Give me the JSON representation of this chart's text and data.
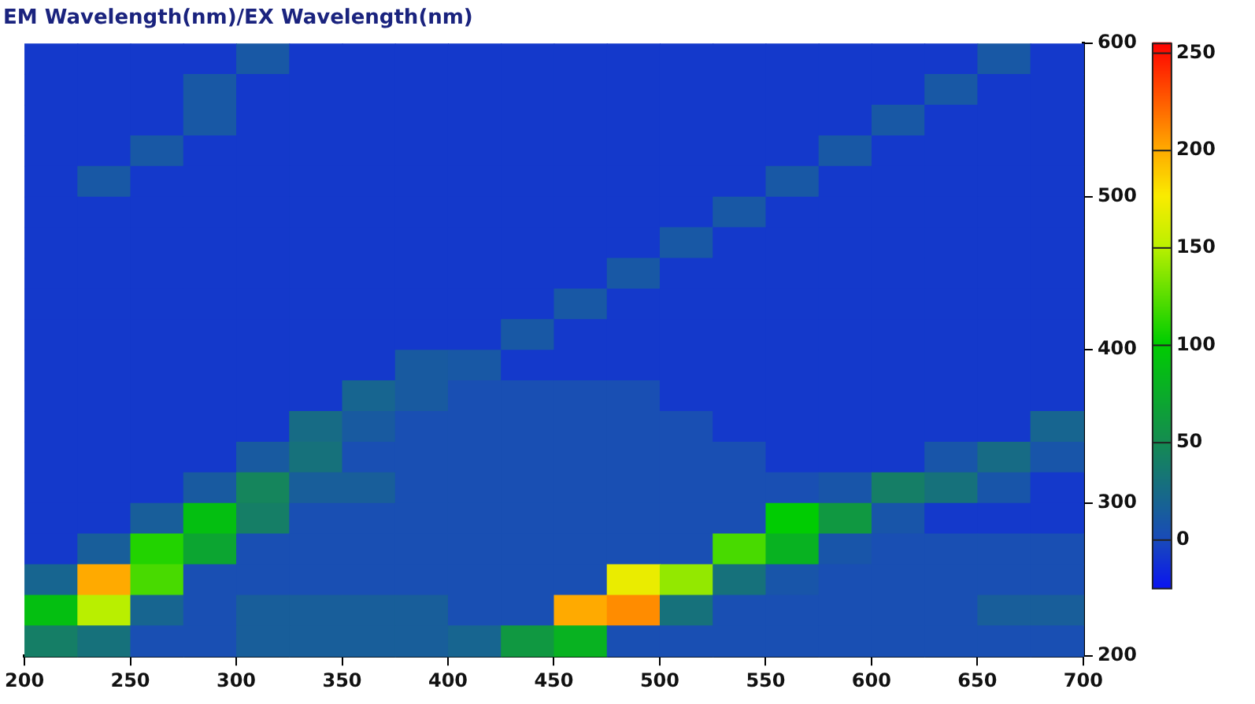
{
  "chart_data": {
    "type": "heatmap",
    "title": "EM Wavelength(nm)/EX Wavelength(nm)",
    "x": [
      212.5,
      237.5,
      262.5,
      287.5,
      312.5,
      337.5,
      362.5,
      387.5,
      412.5,
      437.5,
      462.5,
      487.5,
      512.5,
      537.5,
      562.5,
      587.5,
      612.5,
      637.5,
      662.5,
      687.5
    ],
    "y": [
      590,
      570,
      550,
      530,
      510,
      490,
      470,
      450,
      430,
      410,
      390,
      370,
      350,
      330,
      310,
      290,
      270,
      250,
      230,
      210
    ],
    "cells": [
      [
        -8,
        -8,
        -8,
        -8,
        10,
        -8,
        -8,
        -8,
        -8,
        -8,
        -8,
        -8,
        -8,
        -8,
        -8,
        -8,
        -8,
        -8,
        10,
        -8
      ],
      [
        -8,
        -8,
        -8,
        10,
        -8,
        -8,
        -8,
        -8,
        -8,
        -8,
        -8,
        -8,
        -8,
        -8,
        -8,
        -8,
        -8,
        10,
        -8,
        -8
      ],
      [
        -8,
        -8,
        -8,
        10,
        -8,
        -8,
        -8,
        -8,
        -8,
        -8,
        -8,
        -8,
        -8,
        -8,
        -8,
        -8,
        10,
        -8,
        -8,
        -8
      ],
      [
        -8,
        -8,
        10,
        -8,
        -8,
        -8,
        -8,
        -8,
        -8,
        -8,
        -8,
        -8,
        -8,
        -8,
        -8,
        10,
        -8,
        -8,
        -8,
        -8
      ],
      [
        -8,
        10,
        -8,
        -8,
        -8,
        -8,
        -8,
        -8,
        -8,
        -8,
        -8,
        -8,
        -8,
        -8,
        10,
        -8,
        -8,
        -8,
        -8,
        -8
      ],
      [
        -8,
        -8,
        -8,
        -8,
        -8,
        -8,
        -8,
        -8,
        -8,
        -8,
        -8,
        -8,
        -8,
        10,
        -8,
        -8,
        -8,
        -8,
        -8,
        -8
      ],
      [
        -8,
        -8,
        -8,
        -8,
        -8,
        -8,
        -8,
        -8,
        -8,
        -8,
        -8,
        -8,
        10,
        -8,
        -8,
        -8,
        -8,
        -8,
        -8,
        -8
      ],
      [
        -8,
        -8,
        -8,
        -8,
        -8,
        -8,
        -8,
        -8,
        -8,
        -8,
        -8,
        10,
        -8,
        -8,
        -8,
        -8,
        -8,
        -8,
        -8,
        -8
      ],
      [
        -8,
        -8,
        -8,
        -8,
        -8,
        -8,
        -8,
        -8,
        -8,
        -8,
        10,
        -8,
        -8,
        -8,
        -8,
        -8,
        -8,
        -8,
        -8,
        -8
      ],
      [
        -8,
        -8,
        -8,
        -8,
        -8,
        -8,
        -8,
        -8,
        -8,
        10,
        -8,
        -8,
        -8,
        -8,
        -8,
        -8,
        -8,
        -8,
        -8,
        -8
      ],
      [
        -8,
        -8,
        -8,
        -8,
        -8,
        -8,
        -8,
        12,
        10,
        -8,
        -8,
        -8,
        -8,
        -8,
        -8,
        -8,
        -8,
        -8,
        -8,
        -8
      ],
      [
        -8,
        -8,
        -8,
        -8,
        -8,
        -8,
        20,
        12,
        3,
        3,
        3,
        3,
        -8,
        -8,
        -8,
        -8,
        -8,
        -8,
        -8,
        -8
      ],
      [
        -8,
        -8,
        -8,
        -8,
        -8,
        25,
        12,
        3,
        3,
        3,
        3,
        3,
        3,
        -8,
        -8,
        -8,
        -8,
        -8,
        -8,
        20
      ],
      [
        -8,
        -8,
        -8,
        -8,
        12,
        30,
        3,
        3,
        3,
        3,
        3,
        3,
        3,
        3,
        -8,
        -8,
        -8,
        8,
        25,
        8
      ],
      [
        -8,
        -8,
        -8,
        12,
        45,
        15,
        15,
        3,
        3,
        3,
        3,
        3,
        3,
        3,
        3,
        8,
        40,
        30,
        8,
        -8
      ],
      [
        -8,
        -8,
        15,
        90,
        40,
        3,
        3,
        3,
        3,
        3,
        3,
        3,
        3,
        3,
        100,
        60,
        8,
        -8,
        -8,
        -8
      ],
      [
        -8,
        15,
        110,
        70,
        3,
        3,
        3,
        3,
        3,
        3,
        3,
        3,
        3,
        120,
        80,
        8,
        3,
        3,
        3,
        3
      ],
      [
        20,
        200,
        120,
        3,
        3,
        3,
        3,
        3,
        3,
        3,
        3,
        170,
        140,
        30,
        8,
        3,
        3,
        3,
        3,
        3
      ],
      [
        90,
        150,
        20,
        3,
        15,
        15,
        15,
        15,
        3,
        3,
        200,
        210,
        30,
        3,
        3,
        3,
        3,
        3,
        15,
        15
      ],
      [
        40,
        30,
        3,
        3,
        15,
        15,
        15,
        15,
        20,
        60,
        80,
        3,
        3,
        3,
        3,
        3,
        3,
        3,
        3,
        3
      ]
    ],
    "xlim": [
      200,
      700
    ],
    "xticks": [
      200,
      250,
      300,
      350,
      400,
      450,
      500,
      550,
      600,
      650,
      700
    ],
    "ylim": [
      200,
      600
    ],
    "yticks": [
      200,
      300,
      400,
      500,
      600
    ],
    "clim": [
      -25,
      255
    ],
    "cticks": [
      0,
      50,
      100,
      150,
      200,
      250
    ]
  }
}
